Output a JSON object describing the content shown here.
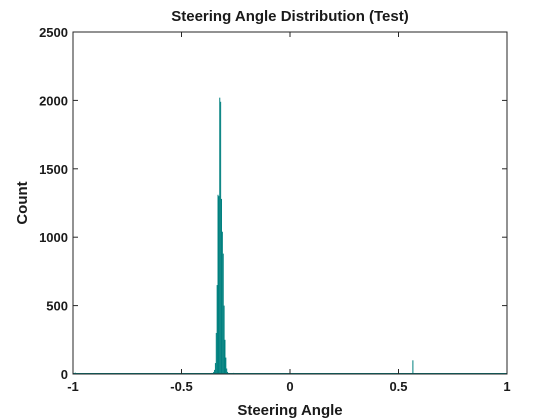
{
  "chart_data": {
    "type": "bar",
    "title": "Steering Angle Distribution (Test)",
    "xlabel": "Steering Angle",
    "ylabel": "Count",
    "xlim": [
      -1,
      1
    ],
    "ylim": [
      0,
      2500
    ],
    "xticks": [
      -1,
      -0.5,
      0,
      0.5,
      1
    ],
    "xtick_labels": [
      "-1",
      "-0.5",
      "0",
      "0.5",
      "1"
    ],
    "yticks": [
      0,
      500,
      1000,
      1500,
      2000,
      2500
    ],
    "ytick_labels": [
      "0",
      "500",
      "1000",
      "1500",
      "2000",
      "2500"
    ],
    "bar_color": "#00807f",
    "grid": false,
    "bin_width": 0.004,
    "bins": [
      {
        "x": -0.99,
        "count": 10
      },
      {
        "x": -0.6,
        "count": 6
      },
      {
        "x": -0.36,
        "count": 8
      },
      {
        "x": -0.352,
        "count": 15
      },
      {
        "x": -0.348,
        "count": 30
      },
      {
        "x": -0.344,
        "count": 80
      },
      {
        "x": -0.34,
        "count": 300
      },
      {
        "x": -0.336,
        "count": 650
      },
      {
        "x": -0.332,
        "count": 1310
      },
      {
        "x": -0.328,
        "count": 1300
      },
      {
        "x": -0.324,
        "count": 2020
      },
      {
        "x": -0.32,
        "count": 1990
      },
      {
        "x": -0.316,
        "count": 1280
      },
      {
        "x": -0.312,
        "count": 1040
      },
      {
        "x": -0.308,
        "count": 880
      },
      {
        "x": -0.304,
        "count": 500
      },
      {
        "x": -0.3,
        "count": 250
      },
      {
        "x": -0.296,
        "count": 120
      },
      {
        "x": -0.292,
        "count": 40
      },
      {
        "x": -0.288,
        "count": 15
      },
      {
        "x": -0.26,
        "count": 8
      },
      {
        "x": -0.2,
        "count": 5
      },
      {
        "x": -0.1,
        "count": 4
      },
      {
        "x": 0.08,
        "count": 5
      },
      {
        "x": 0.3,
        "count": 4
      },
      {
        "x": 0.566,
        "count": 100
      },
      {
        "x": 0.7,
        "count": 5
      },
      {
        "x": 0.9,
        "count": 6
      }
    ]
  }
}
